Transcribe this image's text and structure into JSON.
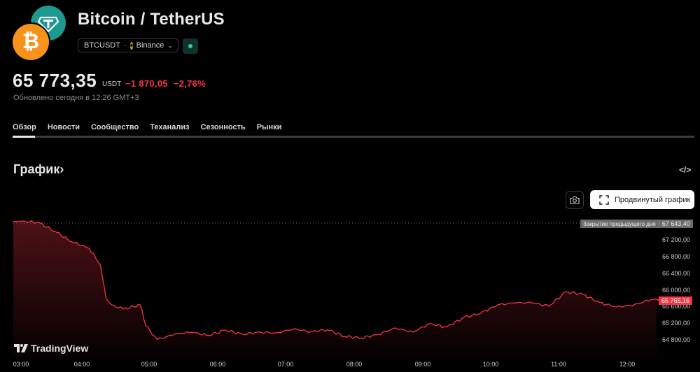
{
  "header": {
    "title": "Bitcoin / TetherUS",
    "symbol": "BTCUSDT",
    "separator": "·",
    "exchange": "Binance",
    "exchange_chevron": "⌄",
    "status": "market-open",
    "logos": {
      "base": "bitcoin-logo",
      "quote": "tether-logo",
      "base_color": "#f7931a",
      "quote_color": "#1d9990"
    }
  },
  "quote": {
    "price": "65 773,35",
    "currency": "USDT",
    "change": "−1 870,05",
    "change_pct": "−2,76%",
    "updated": "Обновлено сегодня в 12:26 GMT+3",
    "change_color": "#f23645"
  },
  "tabs": [
    {
      "label": "Обзор",
      "active": true
    },
    {
      "label": "Новости"
    },
    {
      "label": "Сообщество"
    },
    {
      "label": "Теханализ"
    },
    {
      "label": "Сезонность"
    },
    {
      "label": "Рынки"
    }
  ],
  "chart_section": {
    "title": "График›",
    "embed_icon": "</>",
    "snapshot_icon": "camera-icon",
    "advanced_button": "Продвинутый график",
    "brand": "TradingView"
  },
  "chart_data": {
    "type": "area",
    "title": "BTCUSDT",
    "xlabel": "",
    "ylabel": "",
    "x_ticks": [
      "03:00",
      "04:00",
      "05:00",
      "06:00",
      "07:00",
      "08:00",
      "09:00",
      "10:00",
      "11:00",
      "12:00"
    ],
    "y_ticks": [
      "67 200,00",
      "66 800,00",
      "66 400,00",
      "66 000,00",
      "65 600,00",
      "65 200,00",
      "64 800,00"
    ],
    "ylim": [
      64600,
      67800
    ],
    "prev_close": {
      "label": "Закрытие предыдущего дня",
      "value": "67 643,40"
    },
    "last_value": "65 765,16",
    "line_color": "#f23645",
    "grid": false,
    "series": [
      {
        "name": "BTCUSDT",
        "x": [
          "03:00",
          "03:15",
          "03:30",
          "03:45",
          "04:00",
          "04:10",
          "04:15",
          "04:20",
          "04:30",
          "04:45",
          "04:50",
          "05:00",
          "05:15",
          "05:30",
          "05:45",
          "06:00",
          "06:15",
          "06:30",
          "06:45",
          "07:00",
          "07:15",
          "07:30",
          "07:45",
          "08:00",
          "08:15",
          "08:30",
          "08:45",
          "09:00",
          "09:15",
          "09:30",
          "09:45",
          "10:00",
          "10:15",
          "10:30",
          "10:45",
          "11:00",
          "11:15",
          "11:30",
          "11:45",
          "12:00",
          "12:15",
          "12:26"
        ],
        "values": [
          67640,
          67620,
          67400,
          67150,
          67000,
          66600,
          65800,
          65650,
          65550,
          65650,
          65150,
          64820,
          64950,
          65000,
          64920,
          65050,
          64950,
          65000,
          64980,
          65080,
          65010,
          65060,
          64900,
          64860,
          64950,
          65100,
          65000,
          65200,
          65120,
          65350,
          65450,
          65650,
          65700,
          65700,
          65620,
          65960,
          65900,
          65700,
          65600,
          65650,
          65780,
          65765
        ]
      }
    ]
  }
}
